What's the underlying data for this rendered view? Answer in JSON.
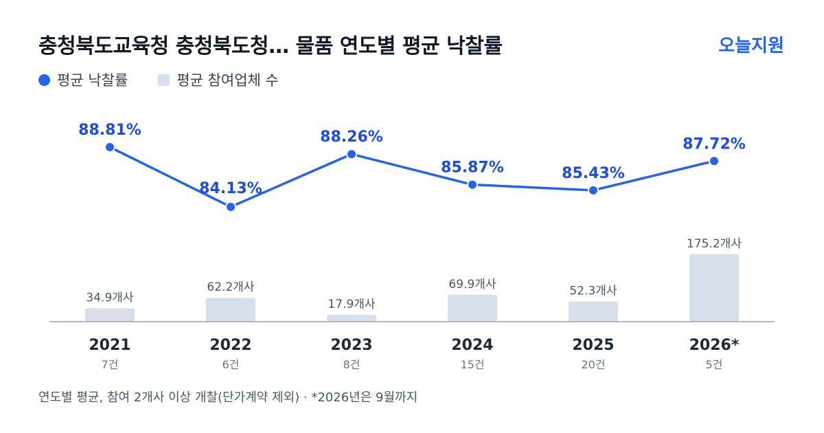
{
  "header": {
    "title": "충청북도교육청 충청북도청… 물품 연도별 평균 낙찰률",
    "brand": "오늘지원"
  },
  "legend": [
    {
      "label": "평균 낙찰률",
      "shape": "dot",
      "color": "#2563eb"
    },
    {
      "label": "평균 참여업체 수",
      "shape": "square",
      "color": "#d6dfea"
    }
  ],
  "chart_data": {
    "type": "bar+line",
    "categories": [
      "2021",
      "2022",
      "2023",
      "2024",
      "2025",
      "2026*"
    ],
    "counts": [
      "7건",
      "6건",
      "8건",
      "15건",
      "20건",
      "5건"
    ],
    "series": [
      {
        "name": "평균 낙찰률",
        "type": "line",
        "values": [
          88.81,
          84.13,
          88.26,
          85.87,
          85.43,
          87.72
        ],
        "labels": [
          "88.81%",
          "84.13%",
          "88.26%",
          "85.87%",
          "85.43%",
          "87.72%"
        ],
        "color": "#2563eb"
      },
      {
        "name": "평균 참여업체 수",
        "type": "bar",
        "values": [
          34.9,
          62.2,
          17.9,
          69.9,
          52.3,
          175.2
        ],
        "labels": [
          "34.9개사",
          "62.2개사",
          "17.9개사",
          "69.9개사",
          "52.3개사",
          "175.2개사"
        ],
        "color": "#d6dfea"
      }
    ]
  },
  "footnote": "연도별 평균, 참여 2개사 이상 개찰(단가계약 제외) · *2026년은 9월까지"
}
